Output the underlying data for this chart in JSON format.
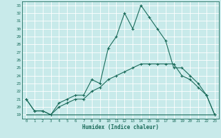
{
  "title": "",
  "xlabel": "Humidex (Indice chaleur)",
  "ylabel": "",
  "background_color": "#c8eaea",
  "grid_color": "#b8d8d8",
  "line_color": "#1a6b5a",
  "xlim": [
    -0.5,
    23.5
  ],
  "ylim": [
    18.5,
    33.5
  ],
  "xticks": [
    0,
    1,
    2,
    3,
    4,
    5,
    6,
    7,
    8,
    9,
    10,
    11,
    12,
    13,
    14,
    15,
    16,
    17,
    18,
    19,
    20,
    21,
    22,
    23
  ],
  "yticks": [
    19,
    20,
    21,
    22,
    23,
    24,
    25,
    26,
    27,
    28,
    29,
    30,
    31,
    32,
    33
  ],
  "line1_x": [
    0,
    1,
    2,
    3,
    4,
    5,
    6,
    7,
    8,
    9,
    10,
    11,
    12,
    13,
    14,
    15,
    16,
    17,
    18,
    19,
    20,
    21,
    22,
    23
  ],
  "line1_y": [
    21.0,
    19.5,
    19.5,
    19.0,
    20.5,
    21.0,
    21.5,
    21.5,
    23.5,
    23.0,
    27.5,
    29.0,
    32.0,
    30.0,
    33.0,
    31.5,
    30.0,
    28.5,
    25.0,
    25.0,
    24.0,
    23.0,
    21.5,
    19.0
  ],
  "line2_x": [
    0,
    1,
    2,
    3,
    4,
    5,
    6,
    7,
    8,
    9,
    10,
    11,
    12,
    13,
    14,
    15,
    16,
    17,
    18,
    19,
    20,
    21,
    22,
    23
  ],
  "line2_y": [
    21.0,
    19.5,
    19.5,
    19.0,
    20.0,
    20.5,
    21.0,
    21.0,
    22.0,
    22.5,
    23.5,
    24.0,
    24.5,
    25.0,
    25.5,
    25.5,
    25.5,
    25.5,
    25.5,
    24.0,
    23.5,
    22.5,
    21.5,
    19.0
  ],
  "line3_x": [
    0,
    23
  ],
  "line3_y": [
    19.0,
    19.0
  ]
}
